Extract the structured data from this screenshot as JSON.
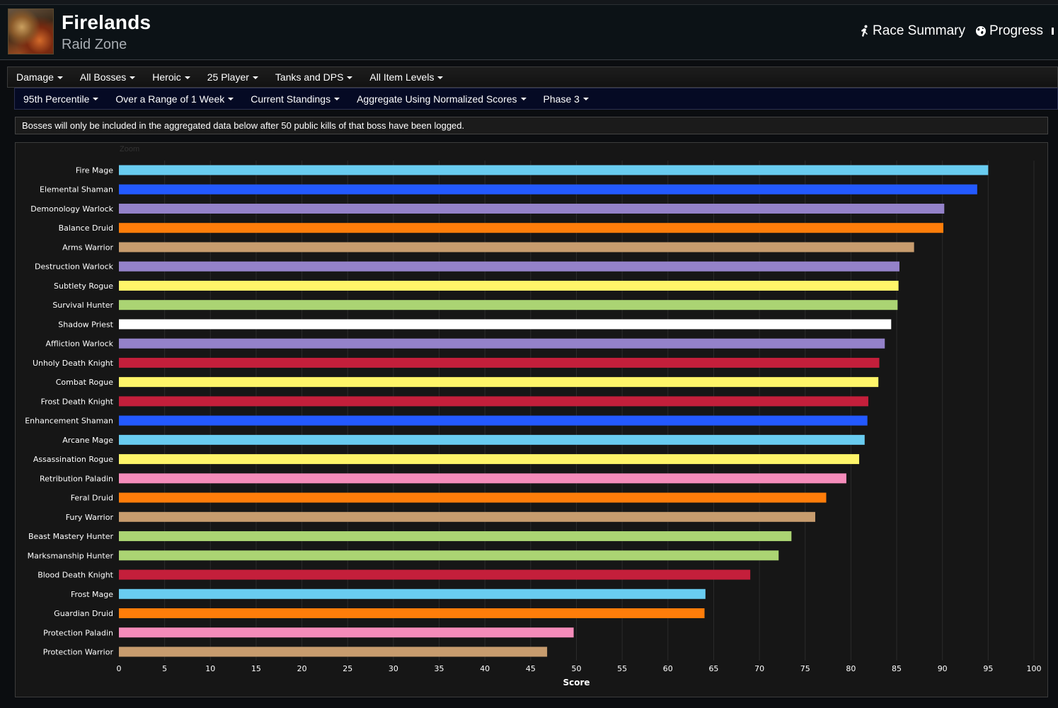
{
  "header": {
    "title": "Firelands",
    "subtitle": "Raid Zone",
    "links": [
      {
        "label": "Race Summary",
        "icon": "running-figure-icon"
      },
      {
        "label": "Progress",
        "icon": "globe-icon"
      }
    ]
  },
  "filters_row1": [
    "Damage",
    "All Bosses",
    "Heroic",
    "25 Player",
    "Tanks and DPS",
    "All Item Levels"
  ],
  "filters_row2": [
    "95th Percentile",
    "Over a Range of 1 Week",
    "Current Standings",
    "Aggregate Using Normalized Scores",
    "Phase 3"
  ],
  "notice": "Bosses will only be included in the aggregated data below after 50 public kills of that boss have been logged.",
  "zoom_label": "Zoom",
  "chart_data": {
    "type": "bar",
    "orientation": "horizontal",
    "xlabel": "Score",
    "xlim": [
      0,
      100
    ],
    "xticks": [
      0,
      5,
      10,
      15,
      20,
      25,
      30,
      35,
      40,
      45,
      50,
      55,
      60,
      65,
      70,
      75,
      80,
      85,
      90,
      95,
      100
    ],
    "grid": true,
    "categories": [
      "Fire Mage",
      "Elemental Shaman",
      "Demonology Warlock",
      "Balance Druid",
      "Arms Warrior",
      "Destruction Warlock",
      "Subtlety Rogue",
      "Survival Hunter",
      "Shadow Priest",
      "Affliction Warlock",
      "Unholy Death Knight",
      "Combat Rogue",
      "Frost Death Knight",
      "Enhancement Shaman",
      "Arcane Mage",
      "Assassination Rogue",
      "Retribution Paladin",
      "Feral Druid",
      "Fury Warrior",
      "Beast Mastery Hunter",
      "Marksmanship Hunter",
      "Blood Death Knight",
      "Frost Mage",
      "Guardian Druid",
      "Protection Paladin",
      "Protection Warrior"
    ],
    "values": [
      95.0,
      93.8,
      90.2,
      90.1,
      86.9,
      85.3,
      85.2,
      85.1,
      84.4,
      83.7,
      83.1,
      83.0,
      81.9,
      81.8,
      81.5,
      80.9,
      79.5,
      77.3,
      76.1,
      73.5,
      72.1,
      69.0,
      64.1,
      64.0,
      49.7,
      46.8
    ],
    "colors": [
      "#69ccf0",
      "#2359ff",
      "#9482c9",
      "#ff7d0a",
      "#c79c6e",
      "#9482c9",
      "#fff569",
      "#abd473",
      "#ffffff",
      "#9482c9",
      "#c41f3b",
      "#fff569",
      "#c41f3b",
      "#2359ff",
      "#69ccf0",
      "#fff569",
      "#f58cba",
      "#ff7d0a",
      "#c79c6e",
      "#abd473",
      "#abd473",
      "#c41f3b",
      "#69ccf0",
      "#ff7d0a",
      "#f58cba",
      "#c79c6e"
    ]
  }
}
